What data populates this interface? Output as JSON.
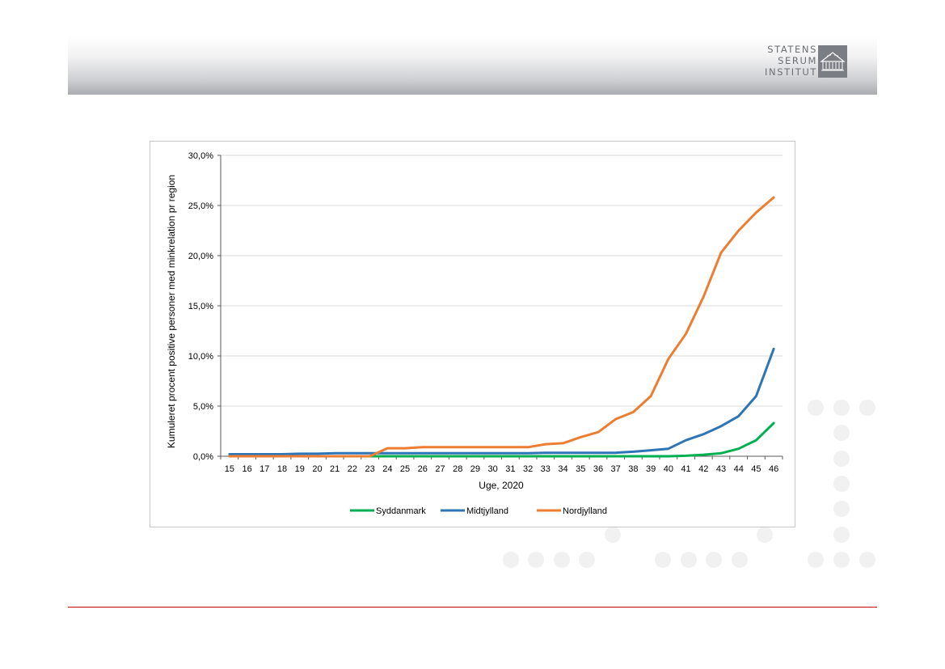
{
  "logo": {
    "lines": [
      "STATENS",
      "SERUM",
      "INSTITUT"
    ],
    "icon": "building-emblem-icon"
  },
  "colors": {
    "accent": "#c00000",
    "syddanmark": "#00b050",
    "midtjylland": "#2e75b6",
    "nordjylland": "#ed7d31"
  },
  "chart_data": {
    "type": "line",
    "title": "",
    "xlabel": "Uge, 2020",
    "ylabel": "Kumuleret procent positive personer med minkrelation pr region",
    "categories": [
      "15",
      "16",
      "17",
      "18",
      "19",
      "20",
      "21",
      "22",
      "23",
      "24",
      "25",
      "26",
      "27",
      "28",
      "29",
      "30",
      "31",
      "32",
      "33",
      "34",
      "35",
      "36",
      "37",
      "38",
      "39",
      "40",
      "41",
      "42",
      "43",
      "44",
      "45",
      "46"
    ],
    "ylim": [
      0,
      30
    ],
    "yticks": [
      "0,0%",
      "5,0%",
      "10,0%",
      "15,0%",
      "20,0%",
      "25,0%",
      "30,0%"
    ],
    "grid": true,
    "legend_position": "bottom",
    "series": [
      {
        "name": "Syddanmark",
        "color": "#00b050",
        "values": [
          0,
          0,
          0,
          0,
          0,
          0,
          0,
          0,
          0,
          0,
          0,
          0,
          0,
          0,
          0,
          0,
          0,
          0,
          0,
          0,
          0,
          0,
          0,
          0,
          0,
          0,
          0.05,
          0.15,
          0.3,
          0.75,
          1.6,
          3.3
        ]
      },
      {
        "name": "Midtjylland",
        "color": "#2e75b6",
        "values": [
          0.2,
          0.2,
          0.2,
          0.2,
          0.25,
          0.25,
          0.3,
          0.3,
          0.3,
          0.3,
          0.3,
          0.3,
          0.3,
          0.3,
          0.3,
          0.3,
          0.3,
          0.3,
          0.35,
          0.35,
          0.35,
          0.35,
          0.35,
          0.45,
          0.6,
          0.75,
          1.6,
          2.2,
          3.0,
          4.0,
          6.0,
          10.7
        ]
      },
      {
        "name": "Nordjylland",
        "color": "#ed7d31",
        "values": [
          0,
          0,
          0,
          0,
          0,
          0,
          0,
          0,
          0,
          0.8,
          0.8,
          0.9,
          0.9,
          0.9,
          0.9,
          0.9,
          0.9,
          0.9,
          1.2,
          1.3,
          1.9,
          2.4,
          3.7,
          4.4,
          6.0,
          9.7,
          12.2,
          15.9,
          20.3,
          22.5,
          24.3,
          25.8
        ]
      }
    ]
  }
}
